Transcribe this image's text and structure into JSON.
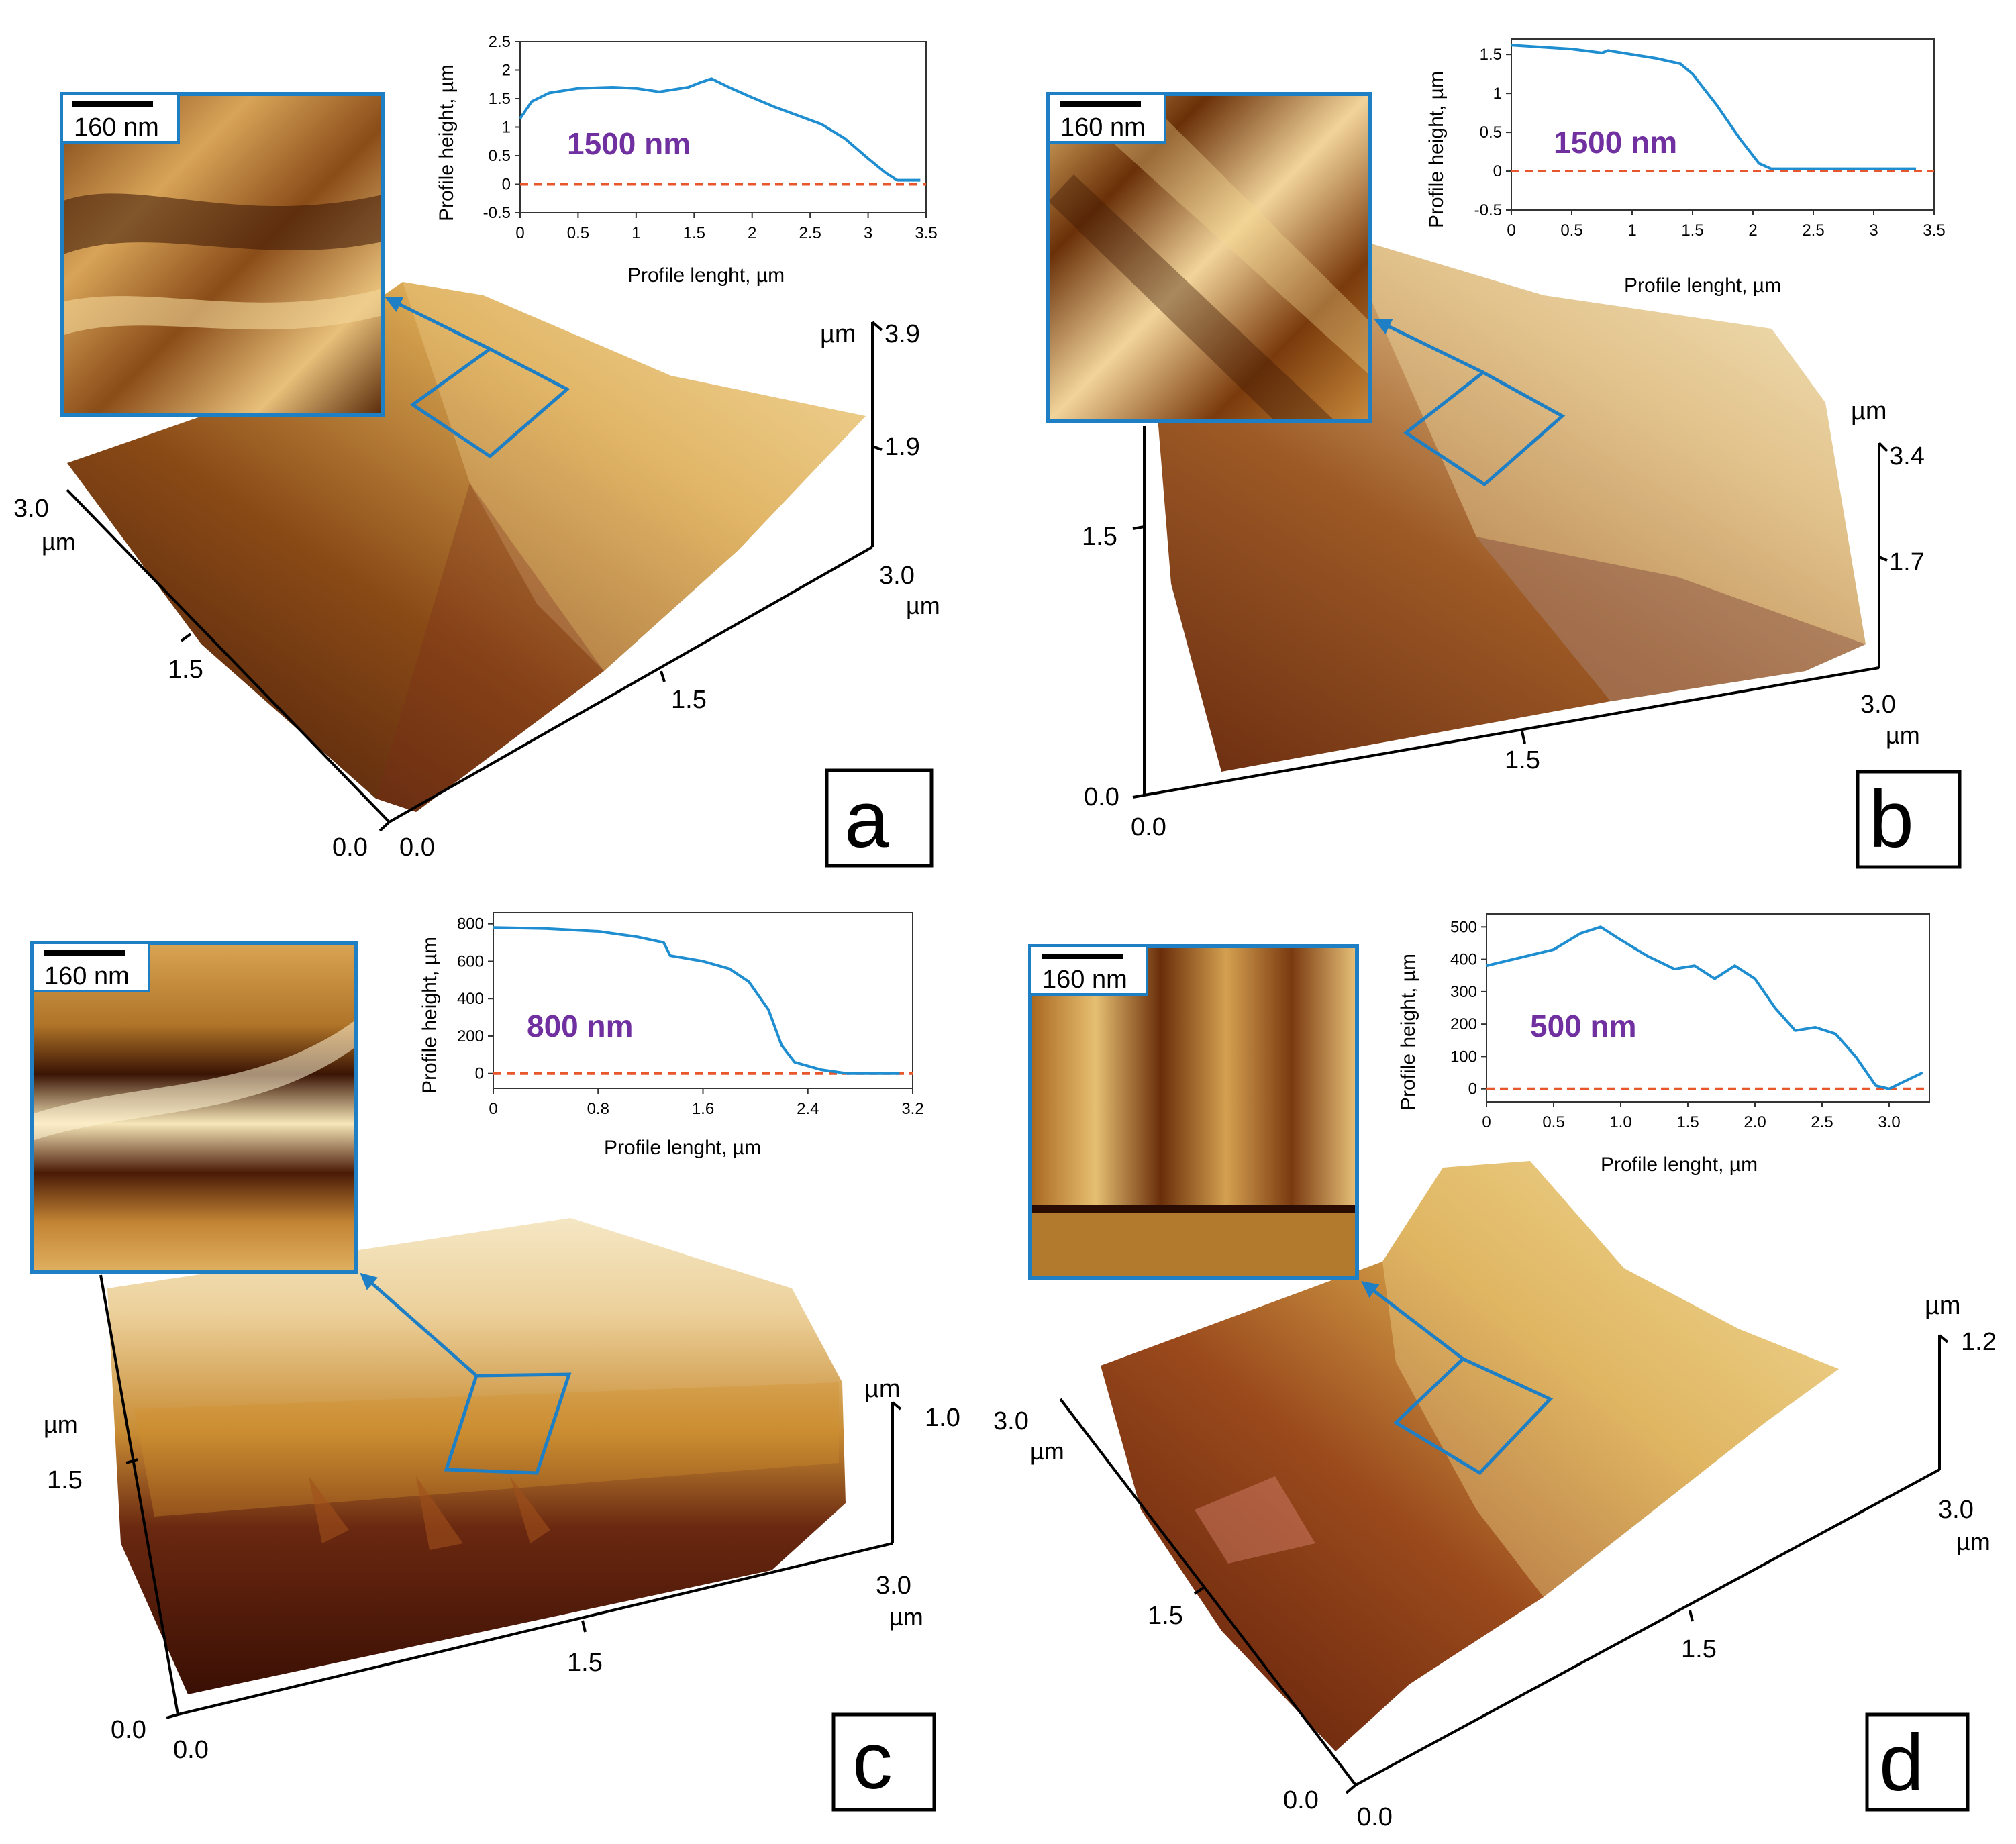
{
  "colors": {
    "profile_line": "#1f8ed0",
    "zero_line": "#e8562c",
    "frame_blue": "#1f7fc4",
    "step_label": "#7030a0",
    "afm_dark": "#4a1c0a",
    "afm_mid": "#a8661e",
    "afm_light": "#f3dca4"
  },
  "panels": [
    {
      "id": "a",
      "label": "a",
      "scale_bar": "160 nm",
      "step_label": "1500 nm",
      "axis_3d": {
        "z_unit": "µm",
        "z_top": "3.9",
        "z_mid": "1.9",
        "x_end": "3.0",
        "x_unit": "µm",
        "x_mid": "1.5",
        "x_zero": "0.0",
        "y_end": "3.0",
        "y_unit": "µm",
        "y_mid": "1.5",
        "y_zero": "0.0"
      },
      "chart_data": {
        "type": "line",
        "xlabel": "Profile lenght, µm",
        "ylabel": "Profile height, µm",
        "xlim": [
          0,
          3.5
        ],
        "ylim": [
          -0.5,
          2.5
        ],
        "xticks": [
          "0",
          "0.5",
          "1",
          "1.5",
          "2",
          "2.5",
          "3",
          "3.5"
        ],
        "yticks": [
          "-0.5",
          "0",
          "0.5",
          "1",
          "1.5",
          "2",
          "2.5"
        ],
        "x": [
          0,
          0.1,
          0.25,
          0.5,
          0.8,
          1.0,
          1.2,
          1.45,
          1.55,
          1.65,
          1.8,
          2.0,
          2.2,
          2.4,
          2.6,
          2.8,
          3.0,
          3.15,
          3.25,
          3.35,
          3.45
        ],
        "y": [
          1.15,
          1.45,
          1.6,
          1.68,
          1.7,
          1.68,
          1.62,
          1.7,
          1.78,
          1.85,
          1.7,
          1.52,
          1.35,
          1.2,
          1.05,
          0.8,
          0.45,
          0.2,
          0.07,
          0.07,
          0.07
        ],
        "reference_line": 0
      }
    },
    {
      "id": "b",
      "label": "b",
      "scale_bar": "160 nm",
      "step_label": "1500 nm",
      "axis_3d": {
        "z_unit": "µm",
        "z_top": "3.4",
        "z_mid": "1.7",
        "x_end": "3.0",
        "x_unit": "µm",
        "x_mid": "1.5",
        "y_mid": "1.5",
        "y_zero": "0.0",
        "x_zero": "0.0"
      },
      "chart_data": {
        "type": "line",
        "xlabel": "Profile lenght, µm",
        "ylabel": "Profile height, µm",
        "xlim": [
          0,
          3.5
        ],
        "ylim": [
          -0.5,
          1.7
        ],
        "xticks": [
          "0",
          "0.5",
          "1",
          "1.5",
          "2",
          "2.5",
          "3",
          "3.5"
        ],
        "yticks": [
          "-0.5",
          "0",
          "0.5",
          "1",
          "1.5"
        ],
        "x": [
          0,
          0.2,
          0.5,
          0.75,
          0.8,
          1.0,
          1.2,
          1.4,
          1.5,
          1.7,
          1.9,
          2.05,
          2.15,
          2.5,
          2.8,
          3.0,
          3.35
        ],
        "y": [
          1.62,
          1.6,
          1.57,
          1.52,
          1.55,
          1.5,
          1.45,
          1.38,
          1.25,
          0.85,
          0.4,
          0.1,
          0.03,
          0.03,
          0.03,
          0.03,
          0.03
        ],
        "reference_line": 0
      }
    },
    {
      "id": "c",
      "label": "c",
      "scale_bar": "160 nm",
      "step_label": "800 nm",
      "axis_3d": {
        "z_unit": "µm",
        "z_top": "1.0",
        "x_end": "3.0",
        "x_unit": "µm",
        "x_mid": "1.5",
        "x_zero": "0.0",
        "y_unit": "µm",
        "y_mid": "1.5",
        "y_zero": "0.0"
      },
      "chart_data": {
        "type": "line",
        "xlabel": "Profile lenght, µm",
        "ylabel": "Profile height, µm",
        "xlim": [
          0,
          3.2
        ],
        "ylim": [
          -80,
          860
        ],
        "xticks": [
          "0",
          "0.8",
          "1.6",
          "2.4",
          "3.2"
        ],
        "yticks": [
          "0",
          "200",
          "400",
          "600",
          "800"
        ],
        "x": [
          0,
          0.4,
          0.8,
          1.1,
          1.3,
          1.35,
          1.6,
          1.8,
          1.95,
          2.1,
          2.2,
          2.3,
          2.5,
          2.7,
          2.9,
          3.1
        ],
        "y": [
          780,
          775,
          760,
          730,
          700,
          630,
          600,
          560,
          490,
          340,
          150,
          60,
          20,
          0,
          0,
          0
        ],
        "reference_line": 0
      }
    },
    {
      "id": "d",
      "label": "d",
      "scale_bar": "160 nm",
      "step_label": "500 nm",
      "axis_3d": {
        "z_unit": "µm",
        "z_top": "1.2",
        "x_end": "3.0",
        "x_unit": "µm",
        "x_mid": "1.5",
        "x_zero": "0.0",
        "y_end": "3.0",
        "y_unit": "µm",
        "y_mid": "1.5",
        "y_zero": "0.0"
      },
      "chart_data": {
        "type": "line",
        "xlabel": "Profile lenght, µm",
        "ylabel": "Profile height, µm",
        "xlim": [
          0,
          3.3
        ],
        "ylim": [
          -40,
          540
        ],
        "xticks": [
          "0",
          "0.5",
          "1.0",
          "1.5",
          "2.0",
          "2.5",
          "3.0"
        ],
        "yticks": [
          "0",
          "100",
          "200",
          "300",
          "400",
          "500"
        ],
        "x": [
          0,
          0.2,
          0.5,
          0.7,
          0.85,
          1.0,
          1.2,
          1.4,
          1.55,
          1.7,
          1.85,
          2.0,
          2.15,
          2.3,
          2.45,
          2.6,
          2.75,
          2.9,
          3.0,
          3.1,
          3.25
        ],
        "y": [
          380,
          400,
          430,
          480,
          500,
          460,
          410,
          370,
          380,
          340,
          380,
          340,
          250,
          180,
          190,
          170,
          100,
          10,
          0,
          20,
          50
        ],
        "reference_line": 0
      }
    }
  ]
}
